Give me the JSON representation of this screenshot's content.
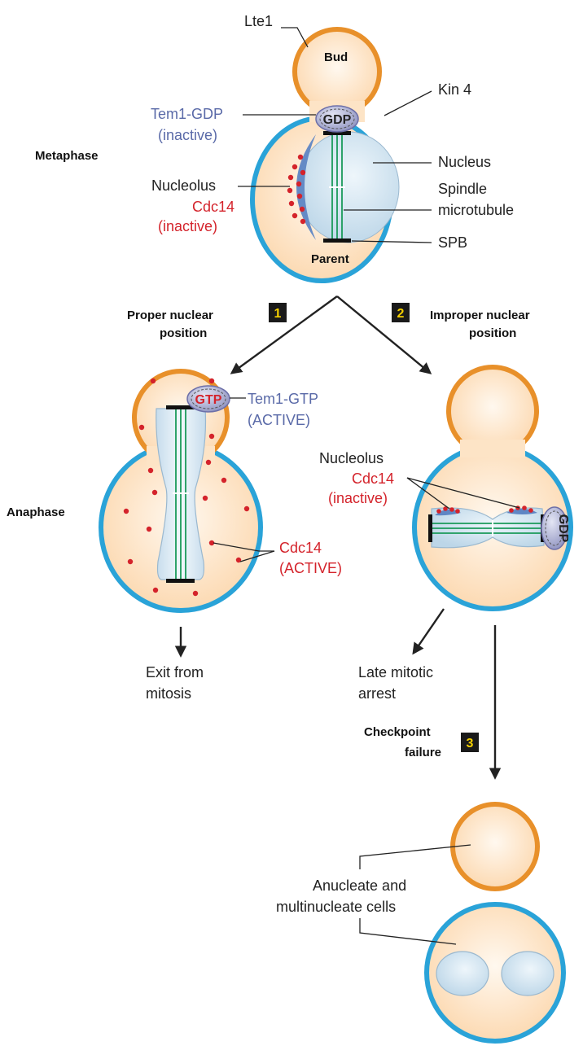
{
  "colors": {
    "bud_membrane": "#e8902a",
    "parent_membrane": "#2aa3d8",
    "cytoplasm": "#fde0bf",
    "nucleus": "#cfe3f0",
    "nucleolus": "#5f86c4",
    "cdc14": "#d4232b",
    "tem1_blue_text": "#5a6aa8",
    "microtubule": "#1a9a5a",
    "step_badge_bg": "#1a1a1a",
    "step_badge_fg": "#f5d000"
  },
  "metaphase": {
    "stage_label": "Metaphase",
    "bud_label": "Bud",
    "parent_label": "Parent",
    "lte1": "Lte1",
    "kin4": "Kin 4",
    "tem1_line1": "Tem1-GDP",
    "tem1_line2": "(inactive)",
    "gdp": "GDP",
    "nucleus": "Nucleus",
    "spindle_line1": "Spindle",
    "spindle_line2": "microtubule",
    "spb": "SPB",
    "nucleolus": "Nucleolus",
    "cdc14_line1": "Cdc14",
    "cdc14_line2": "(inactive)"
  },
  "branch1": {
    "number": "1",
    "line1": "Proper nuclear",
    "line2": "position"
  },
  "branch2": {
    "number": "2",
    "line1": "Improper nuclear",
    "line2": "position"
  },
  "anaphase": {
    "stage_label": "Anaphase",
    "gtp": "GTP",
    "tem1_line1": "Tem1-GTP",
    "tem1_line2": "(ACTIVE)",
    "cdc14_line1": "Cdc14",
    "cdc14_line2": "(ACTIVE)",
    "outcome_line1": "Exit from",
    "outcome_line2": "mitosis"
  },
  "improper": {
    "nucleolus": "Nucleolus",
    "cdc14_line1": "Cdc14",
    "cdc14_line2": "(inactive)",
    "gdp": "GDP",
    "outcome_line1": "Late mitotic",
    "outcome_line2": "arrest"
  },
  "branch3": {
    "number": "3",
    "line1": "Checkpoint",
    "line2": "failure"
  },
  "result": {
    "line1": "Anucleate and",
    "line2": "multinucleate cells"
  }
}
